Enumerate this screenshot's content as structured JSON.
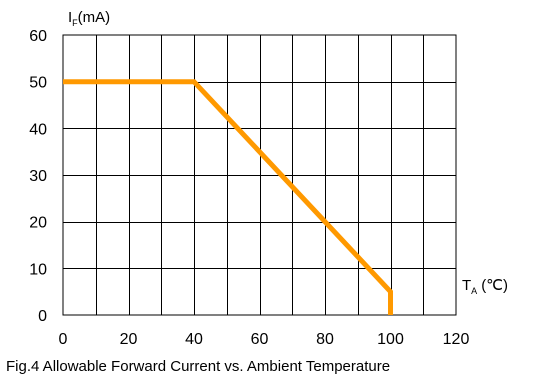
{
  "chart_data": {
    "type": "line",
    "title": "Fig.4 Allowable Forward Current vs. Ambient Temperature",
    "ylabel_main": "I",
    "ylabel_sub": "F",
    "ylabel_unit": "(mA)",
    "xlabel_main": "T",
    "xlabel_sub": "A",
    "xlabel_unit": "(℃)",
    "xlim": [
      0,
      120
    ],
    "ylim": [
      0,
      60
    ],
    "x_ticks": [
      0,
      20,
      40,
      60,
      80,
      100,
      120
    ],
    "y_ticks": [
      0,
      10,
      20,
      30,
      40,
      50,
      60
    ],
    "x_grid_step": 10,
    "y_grid_step": 10,
    "grid": true,
    "series": [
      {
        "color": "#ff9900",
        "points": [
          {
            "x": 0,
            "y": 50
          },
          {
            "x": 40,
            "y": 50
          },
          {
            "x": 100,
            "y": 5
          },
          {
            "x": 100,
            "y": 0
          }
        ]
      }
    ]
  }
}
